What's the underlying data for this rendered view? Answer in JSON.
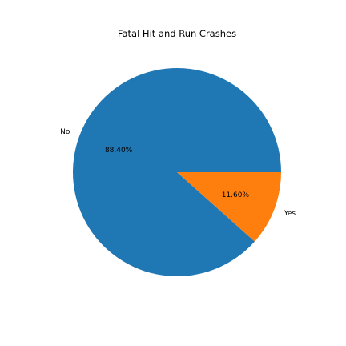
{
  "chart_data": {
    "type": "pie",
    "title": "Fatal Hit and Run Crashes",
    "categories": [
      "No",
      "Yes"
    ],
    "values": [
      88.4,
      11.6
    ],
    "percent_labels": [
      "88.40%",
      "11.60%"
    ],
    "colors": [
      "#1f77b4",
      "#ff7f0e"
    ],
    "start_angle_deg": 0,
    "direction": "counterclockwise",
    "legend": "none"
  }
}
